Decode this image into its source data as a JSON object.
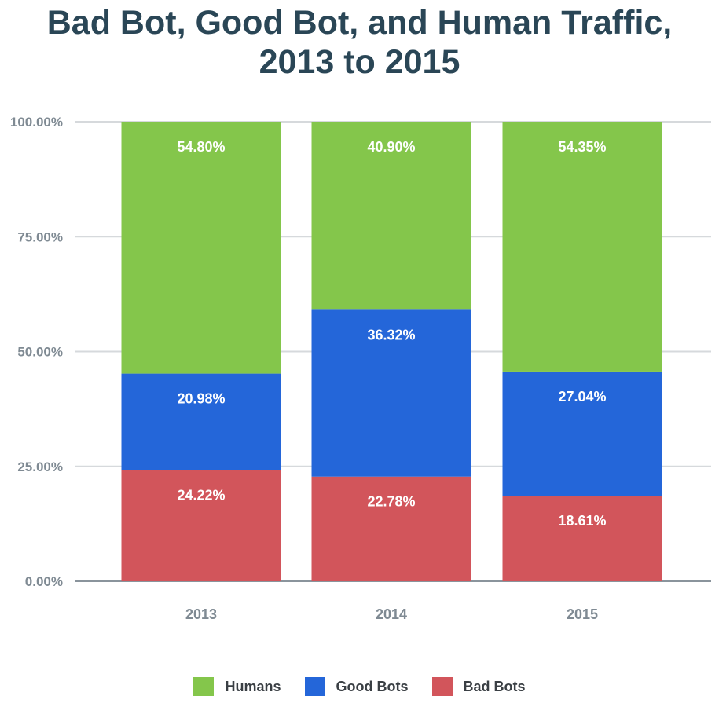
{
  "chart_data": {
    "type": "bar",
    "stacked": true,
    "title": "Bad Bot, Good Bot, and Human Traffic, 2013 to 2015",
    "title_lines": [
      "Bad Bot, Good Bot, and Human Traffic,",
      "2013 to 2015"
    ],
    "categories": [
      "2013",
      "2014",
      "2015"
    ],
    "series": [
      {
        "name": "Bad Bots",
        "color": "#d2555b",
        "values": [
          24.22,
          22.78,
          18.61
        ],
        "labels": [
          "24.22%",
          "22.78%",
          "18.61%"
        ]
      },
      {
        "name": "Good Bots",
        "color": "#2466d9",
        "values": [
          20.98,
          36.32,
          27.04
        ],
        "labels": [
          "20.98%",
          "36.32%",
          "27.04%"
        ]
      },
      {
        "name": "Humans",
        "color": "#84c64b",
        "values": [
          54.8,
          40.9,
          54.35
        ],
        "labels": [
          "54.80%",
          "40.90%",
          "54.35%"
        ]
      }
    ],
    "yticks": [
      0,
      25,
      50,
      75,
      100
    ],
    "ytick_labels": [
      "0.00%",
      "25.00%",
      "50.00%",
      "75.00%",
      "100.00%"
    ],
    "ylim": [
      0,
      100
    ],
    "grid": true,
    "legend_position": "bottom",
    "legend_order": [
      "Humans",
      "Good Bots",
      "Bad Bots"
    ]
  }
}
